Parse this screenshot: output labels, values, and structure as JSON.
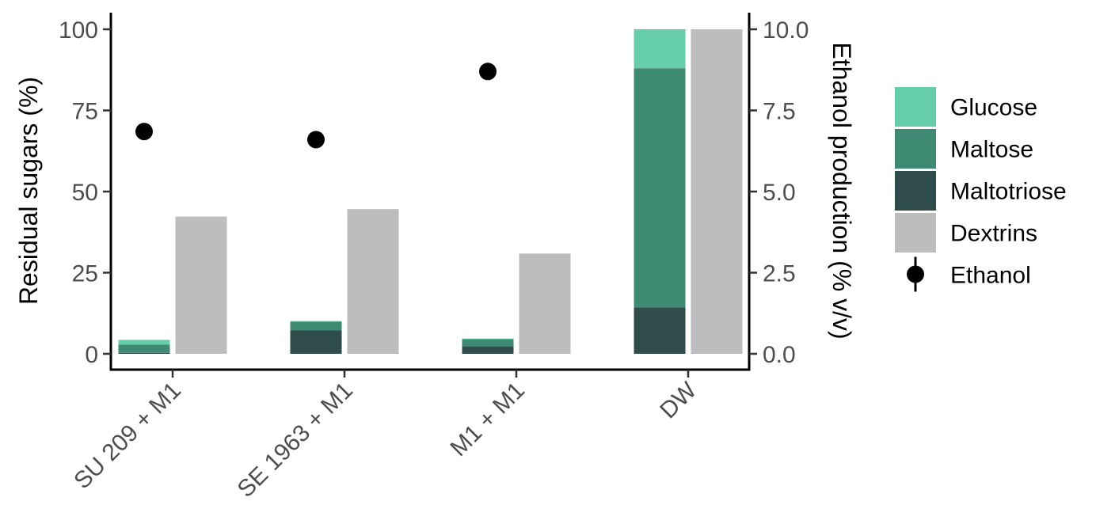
{
  "chart_data": {
    "type": "bar",
    "categories": [
      "SU 209 + M1",
      "SE 1963 + M1",
      "M1 + M1",
      "DW"
    ],
    "y_left": {
      "label": "Residual sugars (%)",
      "ylim": [
        0,
        100
      ],
      "ticks": [
        "0",
        "25",
        "50",
        "75",
        "100"
      ]
    },
    "y_right": {
      "label": "Ethanol production (% v/v)",
      "ylim": [
        0,
        10
      ],
      "ticks": [
        "0.0",
        "2.5",
        "5.0",
        "7.5",
        "10.0"
      ]
    },
    "stacked_series": [
      {
        "name": "Maltotriose",
        "color": "#2f4b4b",
        "values": [
          0.3,
          7.2,
          2.3,
          14.3
        ]
      },
      {
        "name": "Maltose",
        "color": "#3e8a73",
        "values": [
          2.5,
          2.7,
          2.2,
          73.7
        ]
      },
      {
        "name": "Glucose",
        "color": "#66cdaa",
        "values": [
          1.5,
          0.2,
          0.2,
          12.0
        ]
      }
    ],
    "bar_series": {
      "name": "Dextrins",
      "color": "#bdbdbd",
      "values": [
        42.3,
        44.6,
        30.9,
        100
      ]
    },
    "point_series": {
      "name": "Ethanol",
      "color": "#000000",
      "values": [
        6.85,
        6.6,
        8.7,
        null
      ]
    },
    "legend_position": "right",
    "grid": false
  }
}
